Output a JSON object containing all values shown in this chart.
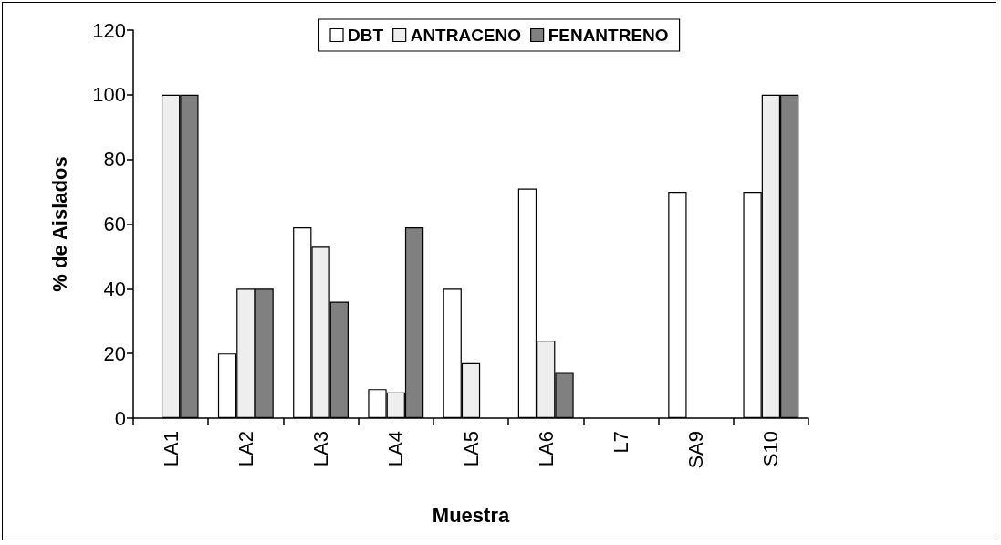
{
  "chart_data": {
    "type": "bar",
    "xlabel": "Muestra",
    "ylabel": "% de Aislados",
    "categories": [
      "LA1",
      "LA2",
      "LA3",
      "LA4",
      "LA5",
      "LA6",
      "L7",
      "SA9",
      "S10"
    ],
    "series": [
      {
        "name": "DBT",
        "color": "#ffffff",
        "values": [
          0,
          20,
          59,
          9,
          40,
          71,
          0,
          70,
          70
        ]
      },
      {
        "name": "ANTRACENO",
        "color": "#eeeeee",
        "values": [
          100,
          40,
          53,
          8,
          17,
          24,
          0,
          0,
          100
        ]
      },
      {
        "name": "FENANTRENO",
        "color": "#808080",
        "values": [
          100,
          40,
          36,
          59,
          0,
          14,
          0,
          0,
          100
        ]
      }
    ],
    "ylim": [
      0,
      120
    ],
    "yticks": [
      0,
      20,
      40,
      60,
      80,
      100,
      120
    ],
    "grid": false,
    "legend": "top"
  }
}
